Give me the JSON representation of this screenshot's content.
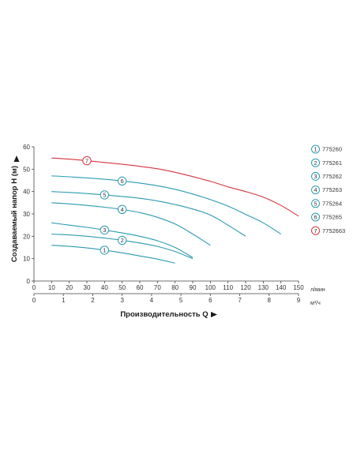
{
  "chart_data": {
    "type": "line",
    "ylabel": "Создаваемый напор Н (м)",
    "xlabel": "Производительность Q",
    "ylim": [
      0,
      60
    ],
    "yticks": [
      "0",
      "10",
      "20",
      "30",
      "40",
      "50",
      "60"
    ],
    "xlim": [
      0,
      150
    ],
    "xticks_lmin": [
      "0",
      "10",
      "20",
      "30",
      "40",
      "50",
      "60",
      "70",
      "80",
      "90",
      "100",
      "110",
      "120",
      "130",
      "140",
      "150"
    ],
    "xunit_lmin": "л/мин",
    "xticks_m3h": [
      "0",
      "1",
      "2",
      "3",
      "4",
      "5",
      "6",
      "7",
      "8",
      "9"
    ],
    "xunit_m3h": "м³/ч",
    "grid": false,
    "legend_position": "right",
    "colors": {
      "teal": "#2a9bb0",
      "red": "#d6343f",
      "axis": "#444444"
    },
    "series": [
      {
        "marker": "1",
        "name": "775260",
        "color": "#2a9bb0",
        "label_at": 40,
        "x": [
          10,
          20,
          30,
          40,
          50,
          60,
          70,
          80
        ],
        "y": [
          16,
          15.5,
          14.8,
          13.8,
          12.6,
          11.2,
          9.8,
          8
        ]
      },
      {
        "marker": "2",
        "name": "775261",
        "color": "#2a9bb0",
        "label_at": 50,
        "x": [
          10,
          20,
          30,
          40,
          50,
          60,
          70,
          80,
          90
        ],
        "y": [
          21,
          20.6,
          20,
          19.2,
          18.2,
          17,
          15.5,
          13.2,
          10
        ]
      },
      {
        "marker": "3",
        "name": "775262",
        "color": "#2a9bb0",
        "label_at": 40,
        "x": [
          10,
          20,
          30,
          40,
          50,
          60,
          70,
          80,
          90
        ],
        "y": [
          26,
          25,
          24,
          22.8,
          21.5,
          20,
          18,
          15,
          10.5
        ]
      },
      {
        "marker": "4",
        "name": "775263",
        "color": "#2a9bb0",
        "label_at": 50,
        "x": [
          10,
          20,
          30,
          40,
          50,
          60,
          70,
          80,
          90,
          100
        ],
        "y": [
          35,
          34.5,
          33.8,
          33,
          32,
          30.6,
          28.5,
          25.5,
          21,
          16
        ]
      },
      {
        "marker": "5",
        "name": "775264",
        "color": "#2a9bb0",
        "label_at": 40,
        "x": [
          10,
          20,
          30,
          40,
          50,
          60,
          70,
          80,
          90,
          100,
          110,
          120
        ],
        "y": [
          40,
          39.6,
          39.1,
          38.5,
          37.8,
          37,
          35.8,
          34.2,
          32.2,
          29.5,
          25,
          20
        ]
      },
      {
        "marker": "6",
        "name": "775265",
        "color": "#2a9bb0",
        "label_at": 50,
        "x": [
          10,
          20,
          30,
          40,
          50,
          60,
          70,
          80,
          90,
          100,
          110,
          120,
          130,
          140
        ],
        "y": [
          47,
          46.6,
          46.1,
          45.5,
          44.7,
          43.8,
          42.6,
          41,
          38.9,
          36.4,
          33.5,
          29.8,
          26,
          21
        ]
      },
      {
        "marker": "7",
        "name": "7752663",
        "color": "#d6343f",
        "label_at": 30,
        "x": [
          10,
          20,
          30,
          40,
          50,
          60,
          70,
          80,
          90,
          100,
          110,
          120,
          130,
          140,
          150
        ],
        "y": [
          55,
          54.5,
          53.8,
          53,
          52.2,
          51.3,
          50.2,
          48.6,
          46.7,
          44.6,
          42.1,
          40,
          37.5,
          33.8,
          29
        ]
      }
    ]
  }
}
